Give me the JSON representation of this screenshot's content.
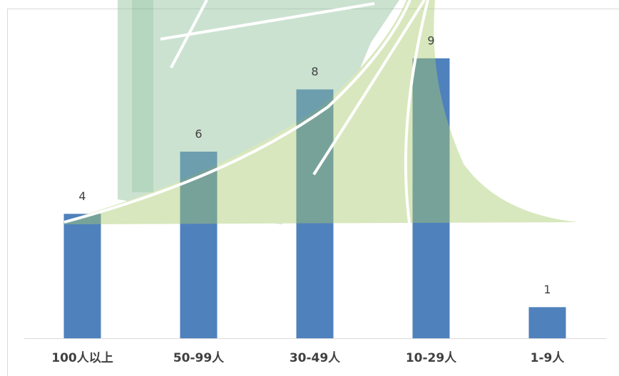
{
  "chart_data": {
    "type": "bar",
    "categories": [
      "100人以上",
      "50-99人",
      "30-49人",
      "10-29人",
      "1-9人"
    ],
    "values": [
      4,
      6,
      8,
      9,
      1
    ],
    "color": "#4f81bd",
    "ylim": [
      0,
      10.6
    ]
  }
}
